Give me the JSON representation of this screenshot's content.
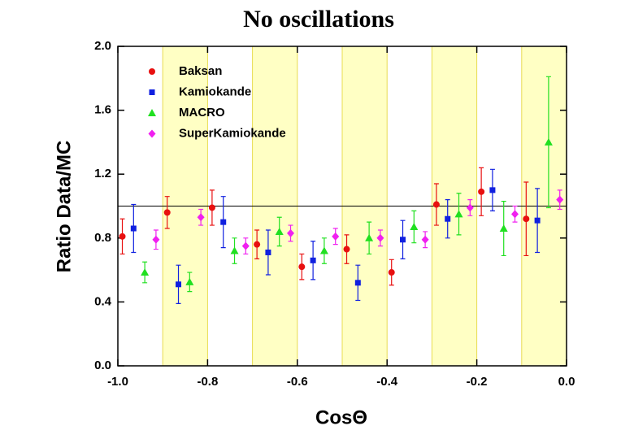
{
  "chart_data": {
    "type": "scatter",
    "title": "No oscillations",
    "x_label": "CosΘ",
    "y_label": "Ratio Data/MC",
    "xlim": [
      -1.0,
      0.0
    ],
    "ylim": [
      0.0,
      2.0
    ],
    "xticks": [
      {
        "value": -1.0,
        "label": "-1.0"
      },
      -0.8,
      -0.6,
      -0.4,
      -0.2,
      {
        "value": 0.0,
        "label": "0.0"
      }
    ],
    "yticks": [
      {
        "value": 0.0,
        "label": "0.0"
      },
      0.4,
      0.8,
      1.2,
      1.6,
      {
        "value": 2.0,
        "label": "2.0"
      }
    ],
    "bands": [
      [
        -0.9,
        -0.8
      ],
      [
        -0.7,
        -0.6
      ],
      [
        -0.5,
        -0.4
      ],
      [
        -0.3,
        -0.2
      ],
      [
        -0.1,
        0.0
      ]
    ],
    "hline": 1.0,
    "legend": "upper left",
    "series": [
      {
        "name": "Baksan",
        "color": "#e81010",
        "marker": "circle",
        "x": [
          -0.99,
          -0.89,
          -0.79,
          -0.69,
          -0.59,
          -0.49,
          -0.39,
          -0.29,
          -0.19,
          -0.09
        ],
        "values": [
          0.81,
          0.96,
          0.99,
          0.76,
          0.62,
          0.73,
          0.585,
          1.01,
          1.09,
          0.92
        ],
        "errors": [
          0.11,
          0.1,
          0.11,
          0.09,
          0.08,
          0.09,
          0.08,
          0.13,
          0.15,
          0.23
        ]
      },
      {
        "name": "Kamiokande",
        "color": "#1020e0",
        "marker": "square",
        "x": [
          -0.965,
          -0.865,
          -0.765,
          -0.665,
          -0.565,
          -0.465,
          -0.365,
          -0.265,
          -0.165,
          -0.065
        ],
        "values": [
          0.86,
          0.51,
          0.9,
          0.71,
          0.66,
          0.52,
          0.79,
          0.92,
          1.1,
          0.91
        ],
        "errors": [
          0.15,
          0.12,
          0.16,
          0.14,
          0.12,
          0.11,
          0.12,
          0.12,
          0.13,
          0.2
        ]
      },
      {
        "name": "MACRO",
        "color": "#20e020",
        "marker": "triangle",
        "x": [
          -0.94,
          -0.84,
          -0.74,
          -0.64,
          -0.54,
          -0.44,
          -0.34,
          -0.24,
          -0.14,
          -0.04
        ],
        "values": [
          0.585,
          0.525,
          0.72,
          0.84,
          0.72,
          0.8,
          0.87,
          0.95,
          0.86,
          1.4
        ],
        "errors": [
          0.065,
          0.06,
          0.08,
          0.09,
          0.08,
          0.1,
          0.1,
          0.13,
          0.17,
          0.41
        ]
      },
      {
        "name": "SuperKamiokande",
        "color": "#f020f0",
        "marker": "diamond",
        "x": [
          -0.915,
          -0.815,
          -0.715,
          -0.615,
          -0.515,
          -0.415,
          -0.315,
          -0.215,
          -0.115,
          -0.015
        ],
        "values": [
          0.79,
          0.93,
          0.75,
          0.83,
          0.81,
          0.8,
          0.79,
          0.99,
          0.95,
          1.04
        ],
        "errors": [
          0.06,
          0.05,
          0.05,
          0.05,
          0.05,
          0.05,
          0.05,
          0.05,
          0.05,
          0.06
        ]
      }
    ]
  }
}
